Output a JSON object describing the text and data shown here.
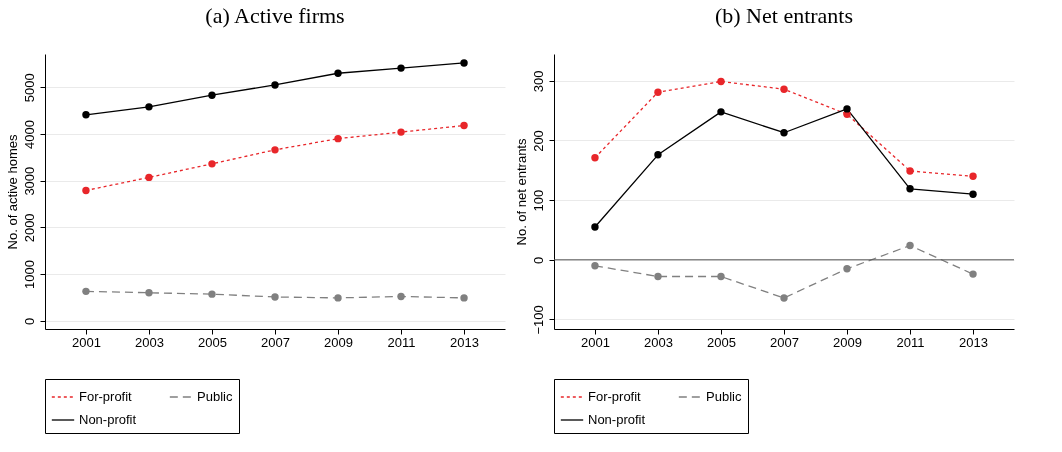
{
  "chart_data": [
    {
      "type": "line",
      "title": "(a) Active firms",
      "ylabel": "No. of active homes",
      "x": [
        2001,
        2003,
        2005,
        2007,
        2009,
        2011,
        2013
      ],
      "xlim": [
        1999.7,
        2014.3
      ],
      "xticks": [
        2001,
        2003,
        2005,
        2007,
        2009,
        2011,
        2013
      ],
      "ylim": [
        -176,
        5712
      ],
      "yticks": [
        0,
        1000,
        2000,
        3000,
        4000,
        5000
      ],
      "grid": "y",
      "legend": "bottom",
      "marker": "circle",
      "series": [
        {
          "name": "For-profit",
          "color": "#e8262a",
          "line_style": "dotted",
          "values": [
            2790,
            3070,
            3360,
            3660,
            3900,
            4040,
            4180
          ]
        },
        {
          "name": "Public",
          "color": "#808080",
          "line_style": "dashed",
          "values": [
            630,
            600,
            570,
            510,
            490,
            520,
            490
          ]
        },
        {
          "name": "Non-profit",
          "color": "#000000",
          "line_style": "solid",
          "values": [
            4410,
            4580,
            4830,
            5050,
            5300,
            5410,
            5520
          ]
        }
      ]
    },
    {
      "type": "line",
      "title": "(b) Net entrants",
      "ylabel": "No. of net entrants",
      "x": [
        2001,
        2003,
        2005,
        2007,
        2009,
        2011,
        2013
      ],
      "xlim": [
        1999.7,
        2014.3
      ],
      "xticks": [
        2001,
        2003,
        2005,
        2007,
        2009,
        2011,
        2013
      ],
      "ylim": [
        -116,
        345
      ],
      "yticks": [
        -100,
        0,
        100,
        200,
        300
      ],
      "grid": "y",
      "legend": "bottom",
      "marker": "circle",
      "ref_lines": [
        {
          "axis": "y",
          "value": 0,
          "color": "#555555"
        }
      ],
      "series": [
        {
          "name": "For-profit",
          "color": "#e8262a",
          "line_style": "dotted",
          "values": [
            171,
            281,
            299,
            286,
            244,
            149,
            140
          ]
        },
        {
          "name": "Public",
          "color": "#808080",
          "line_style": "dashed",
          "values": [
            -10,
            -28,
            -28,
            -64,
            -15,
            24,
            -24
          ]
        },
        {
          "name": "Non-profit",
          "color": "#000000",
          "line_style": "solid",
          "values": [
            55,
            176,
            248,
            213,
            253,
            119,
            110
          ]
        }
      ]
    }
  ]
}
